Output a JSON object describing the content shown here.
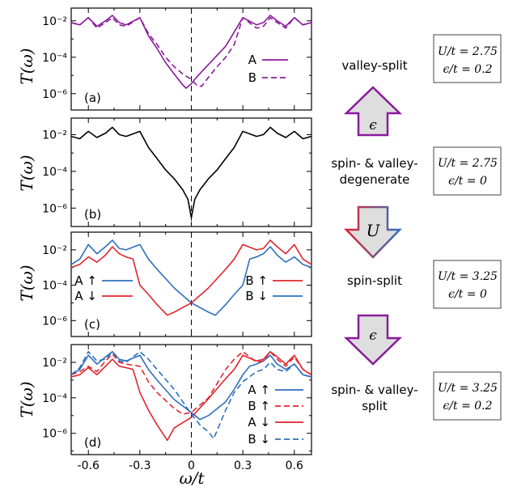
{
  "figure": {
    "ylabel": "T(ω)",
    "xlabel": "ω/t",
    "x_ticks": [
      "-0.6",
      "-0.3",
      "0",
      "0.3",
      "0.6"
    ],
    "y_ticks": [
      "10⁻²",
      "10⁻⁴",
      "10⁻⁶"
    ]
  },
  "chart_data": [
    {
      "type": "line",
      "panel": "(a)",
      "xlabel": "ω/t",
      "ylabel": "T(ω)",
      "xlim": [
        -0.7,
        0.7
      ],
      "y_scale": "log",
      "ylim": [
        1e-07,
        0.1
      ],
      "legend_placement": "right",
      "series": [
        {
          "name": "A",
          "style": "solid",
          "color": "#8a1a9b",
          "x": [
            -0.7,
            -0.65,
            -0.6,
            -0.55,
            -0.5,
            -0.46,
            -0.42,
            -0.38,
            -0.3,
            -0.25,
            -0.2,
            -0.15,
            -0.1,
            -0.05,
            -0.03,
            0,
            0.03,
            0.1,
            0.2,
            0.3,
            0.38,
            0.42,
            0.46,
            0.5,
            0.55,
            0.6,
            0.65,
            0.7
          ],
          "y": [
            0.008,
            0.006,
            0.015,
            0.005,
            0.01,
            0.02,
            0.008,
            0.006,
            0.015,
            0.0015,
            0.0003,
            5e-05,
            1.2e-05,
            3e-06,
            2e-06,
            3.5e-06,
            8e-06,
            4e-05,
            0.0004,
            0.015,
            0.006,
            0.008,
            0.02,
            0.01,
            0.005,
            0.015,
            0.006,
            0.008
          ]
        },
        {
          "name": "B",
          "style": "dashed",
          "color": "#8a1a9b",
          "x": [
            -0.7,
            -0.65,
            -0.6,
            -0.55,
            -0.5,
            -0.46,
            -0.42,
            -0.38,
            -0.3,
            -0.25,
            -0.2,
            -0.15,
            -0.1,
            -0.05,
            0,
            0.03,
            0.06,
            0.1,
            0.15,
            0.2,
            0.25,
            0.3,
            0.38,
            0.42,
            0.46,
            0.5,
            0.55,
            0.6,
            0.65,
            0.7
          ],
          "y": [
            0.008,
            0.006,
            0.015,
            0.004,
            0.008,
            0.015,
            0.006,
            0.005,
            0.015,
            0.002,
            0.0005,
            0.0001,
            3e-05,
            1.2e-05,
            6e-06,
            3e-06,
            2.5e-06,
            8e-06,
            3e-05,
            0.0001,
            0.0005,
            0.015,
            0.004,
            0.005,
            0.015,
            0.008,
            0.004,
            0.015,
            0.006,
            0.008
          ]
        }
      ]
    },
    {
      "type": "line",
      "panel": "(b)",
      "xlabel": "ω/t",
      "ylabel": "T(ω)",
      "xlim": [
        -0.7,
        0.7
      ],
      "y_scale": "log",
      "ylim": [
        1e-07,
        0.1
      ],
      "series": [
        {
          "name": "",
          "style": "solid",
          "color": "#000000",
          "x": [
            -0.7,
            -0.65,
            -0.6,
            -0.55,
            -0.5,
            -0.46,
            -0.42,
            -0.38,
            -0.3,
            -0.25,
            -0.2,
            -0.15,
            -0.1,
            -0.05,
            -0.02,
            0,
            0.02,
            0.05,
            0.1,
            0.15,
            0.2,
            0.25,
            0.3,
            0.38,
            0.42,
            0.46,
            0.5,
            0.55,
            0.6,
            0.65,
            0.7
          ],
          "y": [
            0.008,
            0.006,
            0.015,
            0.007,
            0.012,
            0.025,
            0.01,
            0.008,
            0.015,
            0.002,
            0.0005,
            0.00012,
            4e-05,
            1e-05,
            3e-06,
            3e-07,
            3e-06,
            1e-05,
            4e-05,
            0.00012,
            0.0005,
            0.002,
            0.015,
            0.008,
            0.01,
            0.025,
            0.012,
            0.007,
            0.015,
            0.006,
            0.008
          ]
        }
      ]
    },
    {
      "type": "line",
      "panel": "(c)",
      "xlabel": "ω/t",
      "ylabel": "T(ω)",
      "xlim": [
        -0.7,
        0.7
      ],
      "y_scale": "log",
      "ylim": [
        1e-07,
        0.1
      ],
      "series": [
        {
          "name": "A↑ / B↓",
          "style": "solid",
          "color": "#2e6fbf",
          "x": [
            -0.7,
            -0.65,
            -0.6,
            -0.55,
            -0.5,
            -0.46,
            -0.42,
            -0.38,
            -0.3,
            -0.25,
            -0.2,
            -0.1,
            0,
            0.1,
            0.14,
            0.2,
            0.25,
            0.3,
            0.34,
            0.38,
            0.42,
            0.46,
            0.5,
            0.55,
            0.6,
            0.65,
            0.7
          ],
          "y": [
            0.0015,
            0.003,
            0.02,
            0.006,
            0.015,
            0.035,
            0.012,
            0.01,
            0.02,
            0.003,
            0.0008,
            7e-05,
            1e-05,
            3e-06,
            2e-06,
            8e-06,
            3e-05,
            0.0001,
            0.003,
            0.004,
            0.006,
            0.015,
            0.005,
            0.002,
            0.004,
            0.0015,
            0.001
          ]
        },
        {
          "name": "A↓ / B↑",
          "style": "solid",
          "color": "#e0262e",
          "x": [
            -0.7,
            -0.65,
            -0.6,
            -0.55,
            -0.5,
            -0.46,
            -0.42,
            -0.38,
            -0.34,
            -0.3,
            -0.25,
            -0.2,
            -0.14,
            -0.1,
            0,
            0.1,
            0.2,
            0.25,
            0.3,
            0.38,
            0.42,
            0.46,
            0.5,
            0.55,
            0.6,
            0.65,
            0.7
          ],
          "y": [
            0.001,
            0.0015,
            0.004,
            0.002,
            0.005,
            0.015,
            0.006,
            0.004,
            0.003,
            0.0001,
            3e-05,
            8e-06,
            2e-06,
            3e-06,
            1e-05,
            7e-05,
            0.0008,
            0.003,
            0.02,
            0.01,
            0.012,
            0.035,
            0.015,
            0.006,
            0.02,
            0.003,
            0.0015
          ]
        }
      ]
    },
    {
      "type": "line",
      "panel": "(d)",
      "xlabel": "ω/t",
      "ylabel": "T(ω)",
      "xlim": [
        -0.7,
        0.7
      ],
      "y_scale": "log",
      "ylim": [
        1e-07,
        0.1
      ],
      "legend_placement": "right",
      "series": [
        {
          "name": "A↑",
          "style": "solid",
          "color": "#2e6fbf",
          "x": [
            -0.7,
            -0.65,
            -0.6,
            -0.55,
            -0.5,
            -0.46,
            -0.42,
            -0.38,
            -0.3,
            -0.25,
            -0.2,
            -0.1,
            0,
            0.05,
            0.1,
            0.2,
            0.25,
            0.3,
            0.34,
            0.38,
            0.42,
            0.46,
            0.5,
            0.55,
            0.6,
            0.65,
            0.7
          ],
          "y": [
            0.002,
            0.004,
            0.025,
            0.008,
            0.02,
            0.04,
            0.015,
            0.012,
            0.025,
            0.004,
            0.001,
            8e-05,
            1.5e-05,
            6e-06,
            1e-05,
            6e-05,
            0.0003,
            0.002,
            0.006,
            0.008,
            0.012,
            0.025,
            0.008,
            0.004,
            0.008,
            0.002,
            0.0015
          ]
        },
        {
          "name": "B↑",
          "style": "dashed",
          "color": "#e0262e",
          "x": [
            -0.7,
            -0.65,
            -0.6,
            -0.55,
            -0.5,
            -0.46,
            -0.42,
            -0.38,
            -0.3,
            -0.25,
            -0.2,
            -0.1,
            -0.05,
            0,
            0.1,
            0.2,
            0.25,
            0.3,
            0.38,
            0.42,
            0.46,
            0.5,
            0.55,
            0.6,
            0.65,
            0.7
          ],
          "y": [
            0.002,
            0.003,
            0.006,
            0.003,
            0.012,
            0.03,
            0.01,
            0.008,
            0.006,
            0.0008,
            0.0002,
            2.5e-05,
            1.2e-05,
            1.5e-05,
            0.0001,
            0.004,
            0.015,
            0.04,
            0.01,
            0.012,
            0.04,
            0.015,
            0.006,
            0.02,
            0.004,
            0.002
          ]
        },
        {
          "name": "A↓",
          "style": "solid",
          "color": "#e0262e",
          "x": [
            -0.7,
            -0.65,
            -0.6,
            -0.55,
            -0.5,
            -0.46,
            -0.42,
            -0.38,
            -0.34,
            -0.3,
            -0.25,
            -0.2,
            -0.14,
            -0.1,
            0,
            0.1,
            0.2,
            0.25,
            0.3,
            0.38,
            0.42,
            0.46,
            0.5,
            0.55,
            0.6,
            0.65,
            0.7
          ],
          "y": [
            0.0015,
            0.002,
            0.005,
            0.002,
            0.006,
            0.015,
            0.006,
            0.005,
            0.004,
            0.0002,
            2e-05,
            3e-06,
            4e-07,
            2e-06,
            8e-06,
            9e-05,
            0.0012,
            0.004,
            0.025,
            0.012,
            0.015,
            0.04,
            0.02,
            0.008,
            0.025,
            0.004,
            0.002
          ]
        },
        {
          "name": "B↓",
          "style": "dashed",
          "color": "#2e6fbf",
          "x": [
            -0.7,
            -0.65,
            -0.6,
            -0.55,
            -0.5,
            -0.46,
            -0.42,
            -0.38,
            -0.3,
            -0.25,
            -0.2,
            -0.1,
            0,
            0.05,
            0.1,
            0.13,
            0.2,
            0.25,
            0.3,
            0.38,
            0.42,
            0.46,
            0.5,
            0.55,
            0.6,
            0.65,
            0.7
          ],
          "y": [
            0.002,
            0.005,
            0.04,
            0.012,
            0.015,
            0.04,
            0.012,
            0.01,
            0.04,
            0.015,
            0.004,
            0.0003,
            1.2e-05,
            3e-06,
            1.2e-06,
            5e-07,
            2e-05,
            0.0002,
            0.0008,
            0.003,
            0.004,
            0.01,
            0.004,
            0.003,
            0.008,
            0.002,
            0.0015
          ]
        }
      ]
    }
  ],
  "panels": [
    {
      "label": "(a)",
      "legend": [
        {
          "text": "A"
        },
        {
          "text": "B"
        }
      ]
    },
    {
      "label": "(b)"
    },
    {
      "label": "(c)",
      "legend_left": [
        {
          "text": "A ↑"
        },
        {
          "text": "A ↓"
        }
      ],
      "legend_right": [
        {
          "text": "B ↑"
        },
        {
          "text": "B ↓"
        }
      ]
    },
    {
      "label": "(d)",
      "legend": [
        {
          "text": "A ↑"
        },
        {
          "text": "B ↑"
        },
        {
          "text": "A ↓"
        },
        {
          "text": "B ↓"
        }
      ]
    }
  ],
  "states": [
    {
      "name": "valley-split",
      "name_lines": [
        "valley-split"
      ],
      "params": [
        "U/t = 2.75",
        "ϵ/t = 0.2"
      ]
    },
    {
      "name": "spin- & valley-degenerate",
      "name_lines": [
        "spin- & valley-",
        "degenerate"
      ],
      "params": [
        "U/t = 2.75",
        "ϵ/t = 0"
      ]
    },
    {
      "name": "spin-split",
      "name_lines": [
        "spin-split"
      ],
      "params": [
        "U/t = 3.25",
        "ϵ/t = 0"
      ]
    },
    {
      "name": "spin- & valley-split",
      "name_lines": [
        "spin- & valley-",
        "split"
      ],
      "params": [
        "U/t = 3.25",
        "ϵ/t = 0.2"
      ]
    }
  ],
  "arrows": [
    {
      "label": "ϵ",
      "direction": "up",
      "color": "#8a1a9b"
    },
    {
      "label": "U",
      "direction": "down",
      "colors": [
        "#e0262e",
        "#2e6fbf"
      ]
    },
    {
      "label": "ϵ",
      "direction": "down",
      "color": "#8a1a9b"
    }
  ]
}
